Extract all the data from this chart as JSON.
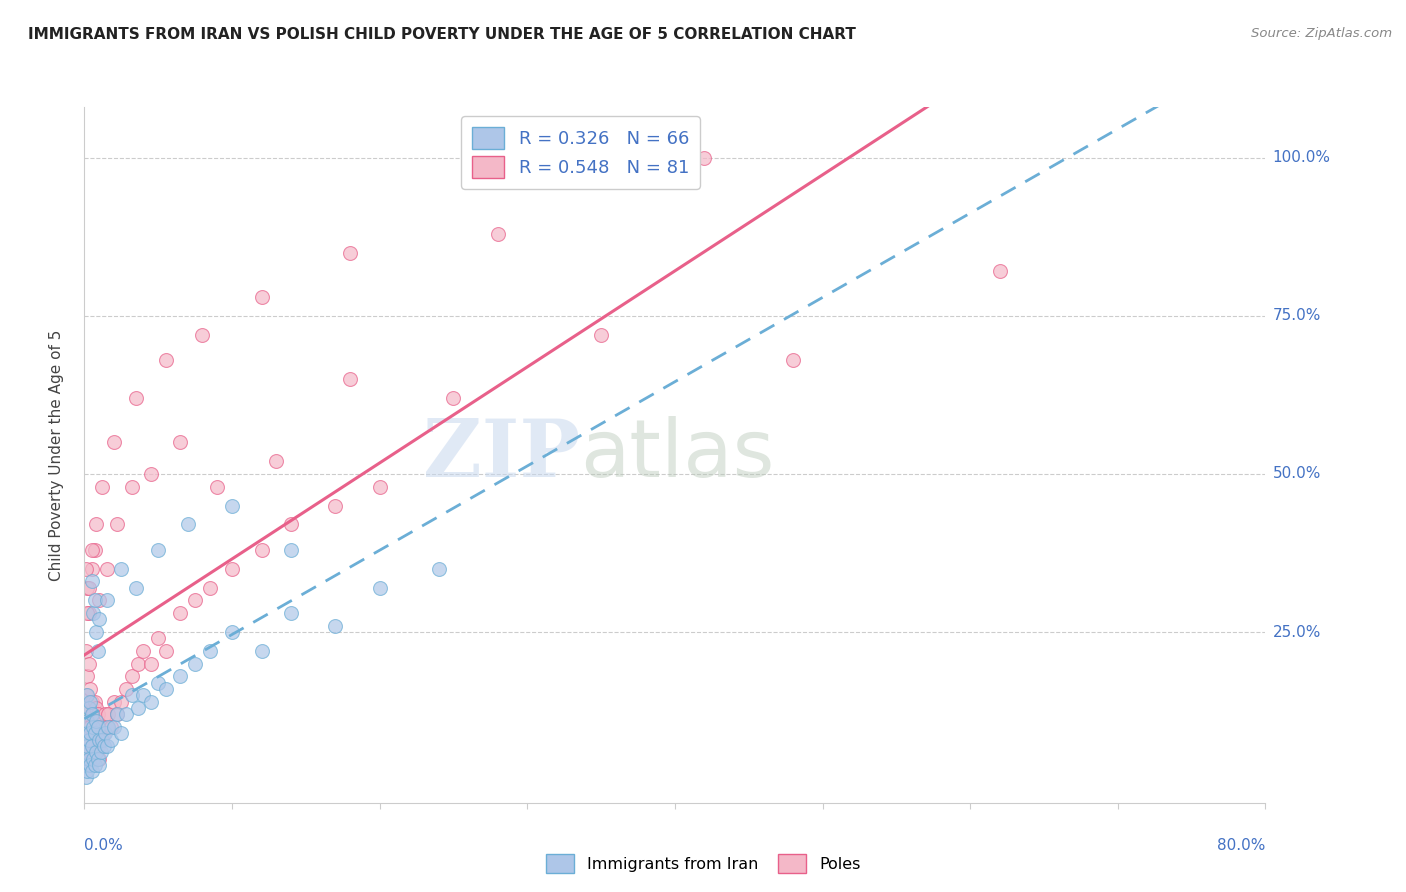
{
  "title": "IMMIGRANTS FROM IRAN VS POLISH CHILD POVERTY UNDER THE AGE OF 5 CORRELATION CHART",
  "source": "Source: ZipAtlas.com",
  "ylabel": "Child Poverty Under the Age of 5",
  "ytick_labels": [
    "100.0%",
    "75.0%",
    "50.0%",
    "25.0%"
  ],
  "ytick_values": [
    1.0,
    0.75,
    0.5,
    0.25
  ],
  "xlim": [
    0.0,
    0.8
  ],
  "ylim": [
    -0.02,
    1.08
  ],
  "background_color": "#ffffff",
  "grid_color": "#cccccc",
  "scatter_iran_color": "#aec6e8",
  "scatter_poles_color": "#f4b8c8",
  "line_iran_color": "#6baed6",
  "line_poles_color": "#e8608a",
  "R_iran": 0.326,
  "N_iran": 66,
  "R_poles": 0.548,
  "N_poles": 81,
  "iran_x": [
    0.001,
    0.001,
    0.001,
    0.001,
    0.002,
    0.002,
    0.002,
    0.002,
    0.003,
    0.003,
    0.003,
    0.004,
    0.004,
    0.004,
    0.005,
    0.005,
    0.005,
    0.006,
    0.006,
    0.007,
    0.007,
    0.008,
    0.008,
    0.009,
    0.009,
    0.01,
    0.01,
    0.011,
    0.012,
    0.013,
    0.014,
    0.015,
    0.016,
    0.018,
    0.02,
    0.022,
    0.025,
    0.028,
    0.032,
    0.036,
    0.04,
    0.045,
    0.05,
    0.055,
    0.065,
    0.075,
    0.085,
    0.1,
    0.12,
    0.14,
    0.17,
    0.2,
    0.24,
    0.005,
    0.006,
    0.007,
    0.008,
    0.009,
    0.01,
    0.015,
    0.025,
    0.035,
    0.05,
    0.07,
    0.1,
    0.14
  ],
  "iran_y": [
    0.02,
    0.04,
    0.06,
    0.09,
    0.03,
    0.07,
    0.11,
    0.15,
    0.05,
    0.08,
    0.13,
    0.04,
    0.09,
    0.14,
    0.03,
    0.07,
    0.12,
    0.05,
    0.1,
    0.04,
    0.09,
    0.06,
    0.11,
    0.05,
    0.1,
    0.04,
    0.08,
    0.06,
    0.08,
    0.07,
    0.09,
    0.07,
    0.1,
    0.08,
    0.1,
    0.12,
    0.09,
    0.12,
    0.15,
    0.13,
    0.15,
    0.14,
    0.17,
    0.16,
    0.18,
    0.2,
    0.22,
    0.25,
    0.22,
    0.28,
    0.26,
    0.32,
    0.35,
    0.33,
    0.28,
    0.3,
    0.25,
    0.22,
    0.27,
    0.3,
    0.35,
    0.32,
    0.38,
    0.42,
    0.45,
    0.38
  ],
  "poles_x": [
    0.001,
    0.001,
    0.001,
    0.001,
    0.002,
    0.002,
    0.002,
    0.003,
    0.003,
    0.003,
    0.004,
    0.004,
    0.004,
    0.005,
    0.005,
    0.006,
    0.006,
    0.007,
    0.007,
    0.008,
    0.008,
    0.009,
    0.009,
    0.01,
    0.01,
    0.011,
    0.012,
    0.013,
    0.014,
    0.015,
    0.016,
    0.018,
    0.02,
    0.022,
    0.025,
    0.028,
    0.032,
    0.036,
    0.04,
    0.045,
    0.05,
    0.055,
    0.065,
    0.075,
    0.085,
    0.1,
    0.12,
    0.14,
    0.17,
    0.2,
    0.002,
    0.003,
    0.005,
    0.007,
    0.01,
    0.015,
    0.022,
    0.032,
    0.045,
    0.065,
    0.09,
    0.13,
    0.18,
    0.25,
    0.35,
    0.48,
    0.62,
    0.001,
    0.002,
    0.003,
    0.005,
    0.008,
    0.012,
    0.02,
    0.035,
    0.055,
    0.08,
    0.12,
    0.18,
    0.28,
    0.42
  ],
  "poles_y": [
    0.05,
    0.1,
    0.15,
    0.22,
    0.06,
    0.12,
    0.18,
    0.08,
    0.13,
    0.2,
    0.06,
    0.1,
    0.16,
    0.07,
    0.14,
    0.06,
    0.12,
    0.07,
    0.14,
    0.06,
    0.13,
    0.07,
    0.12,
    0.05,
    0.1,
    0.08,
    0.1,
    0.09,
    0.12,
    0.1,
    0.12,
    0.1,
    0.14,
    0.12,
    0.14,
    0.16,
    0.18,
    0.2,
    0.22,
    0.2,
    0.24,
    0.22,
    0.28,
    0.3,
    0.32,
    0.35,
    0.38,
    0.42,
    0.45,
    0.48,
    0.32,
    0.28,
    0.35,
    0.38,
    0.3,
    0.35,
    0.42,
    0.48,
    0.5,
    0.55,
    0.48,
    0.52,
    0.65,
    0.62,
    0.72,
    0.68,
    0.82,
    0.35,
    0.28,
    0.32,
    0.38,
    0.42,
    0.48,
    0.55,
    0.62,
    0.68,
    0.72,
    0.78,
    0.85,
    0.88,
    1.0
  ]
}
